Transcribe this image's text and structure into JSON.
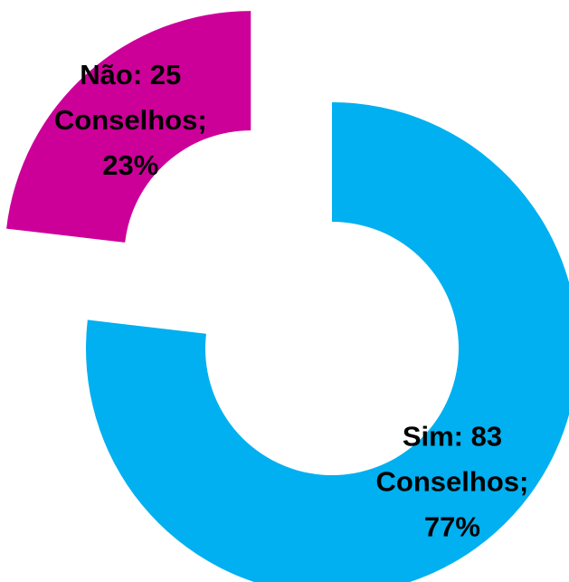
{
  "chart_data": {
    "type": "donut",
    "values": [
      83,
      25
    ],
    "value_labels": [
      [
        "Sim: 83",
        "Conselhos;",
        "77%"
      ],
      [
        "Não: 25",
        "Conselhos;",
        "23%"
      ]
    ],
    "colors": [
      "#00b0f0",
      "#cc0099"
    ],
    "exploded": [
      false,
      true
    ]
  }
}
